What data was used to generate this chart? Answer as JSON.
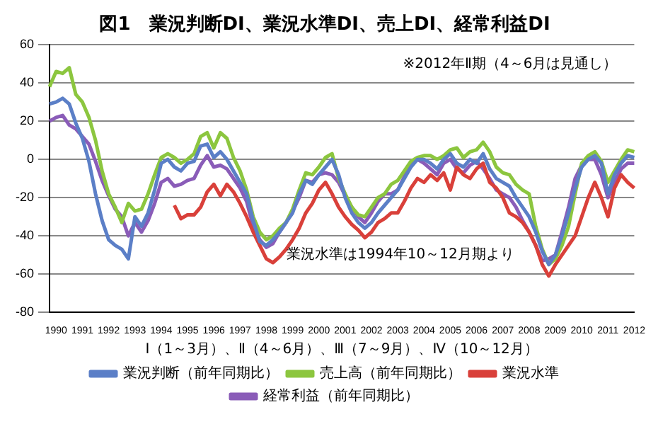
{
  "chart_data": {
    "type": "line",
    "title": "図1　業況判断DI、業況水準DI、売上DI、経常利益DI",
    "xlabel": "Ⅰ（1～3月）、Ⅱ（4～6月）、Ⅲ（7～9月）、Ⅳ（10～12月）",
    "categories": [
      null,
      "1990",
      null,
      null,
      null,
      "1991",
      null,
      null,
      null,
      "1992",
      null,
      null,
      null,
      "1993",
      null,
      null,
      null,
      "1994",
      null,
      null,
      null,
      "1995",
      null,
      null,
      null,
      "1996",
      null,
      null,
      null,
      "1997",
      null,
      null,
      null,
      "1998",
      null,
      null,
      null,
      "1999",
      null,
      null,
      null,
      "2000",
      null,
      null,
      null,
      "2001",
      null,
      null,
      null,
      "2002",
      null,
      null,
      null,
      "2003",
      null,
      null,
      null,
      "2004",
      null,
      null,
      null,
      "2005",
      null,
      null,
      null,
      "2006",
      null,
      null,
      null,
      "2007",
      null,
      null,
      null,
      "2008",
      null,
      null,
      null,
      "2009",
      null,
      null,
      null,
      "2010",
      null,
      null,
      null,
      "2011",
      null,
      null,
      null,
      "2012"
    ],
    "series": [
      {
        "name": "業況判断（前年同期比）",
        "color": "#5b7fc7",
        "values": [
          29,
          30,
          32,
          29,
          19,
          11,
          -1,
          -18,
          -32,
          -42,
          -45,
          -47,
          -52,
          -30,
          -35,
          -28,
          -16,
          -2,
          0,
          -4,
          -6,
          -2,
          -1,
          7,
          8,
          1,
          4,
          0,
          -6,
          -12,
          -18,
          -32,
          -43,
          -45,
          -42,
          -38,
          -33,
          -28,
          -18,
          -11,
          -13,
          -8,
          -4,
          0,
          -8,
          -20,
          -28,
          -33,
          -36,
          -33,
          -28,
          -24,
          -20,
          -16,
          -10,
          -4,
          0,
          0,
          -2,
          -5,
          0,
          3,
          -2,
          -4,
          0,
          -2,
          3,
          -5,
          -10,
          -12,
          -14,
          -20,
          -25,
          -30,
          -38,
          -48,
          -55,
          -50,
          -40,
          -28,
          -15,
          -4,
          0,
          2,
          -2,
          -18,
          -8,
          -2,
          2,
          1
        ]
      },
      {
        "name": "売上高（前年同期比）",
        "color": "#8cc63f",
        "values": [
          38,
          46,
          45,
          48,
          34,
          30,
          22,
          10,
          -6,
          -18,
          -25,
          -33,
          -23,
          -27,
          -26,
          -18,
          -8,
          1,
          3,
          1,
          -2,
          0,
          3,
          12,
          14,
          6,
          14,
          11,
          1,
          -6,
          -16,
          -30,
          -38,
          -42,
          -40,
          -36,
          -33,
          -26,
          -16,
          -7,
          -8,
          -4,
          1,
          3,
          -10,
          -18,
          -25,
          -29,
          -30,
          -25,
          -20,
          -18,
          -13,
          -11,
          -6,
          -1,
          1,
          2,
          2,
          0,
          2,
          5,
          6,
          1,
          4,
          5,
          9,
          4,
          -4,
          -7,
          -8,
          -13,
          -16,
          -18,
          -35,
          -47,
          -55,
          -52,
          -45,
          -35,
          -18,
          -2,
          2,
          4,
          -1,
          -12,
          -6,
          0,
          5,
          4
        ]
      },
      {
        "name": "業況水準",
        "color": "#d9403a",
        "values": [
          null,
          null,
          null,
          null,
          null,
          null,
          null,
          null,
          null,
          null,
          null,
          null,
          null,
          null,
          null,
          null,
          null,
          null,
          null,
          -24,
          -31,
          -29,
          -29,
          -25,
          -17,
          -13,
          -19,
          -13,
          -17,
          -23,
          -30,
          -38,
          -45,
          -52,
          -54,
          -51,
          -47,
          -42,
          -36,
          -28,
          -23,
          -16,
          -12,
          -18,
          -25,
          -30,
          -34,
          -37,
          -41,
          -38,
          -33,
          -31,
          -28,
          -28,
          -22,
          -15,
          -10,
          -12,
          -8,
          -11,
          -7,
          -16,
          -4,
          -8,
          -10,
          -5,
          -2,
          -12,
          -15,
          -20,
          -28,
          -30,
          -33,
          -38,
          -45,
          -55,
          -61,
          -55,
          -50,
          -45,
          -40,
          -30,
          -20,
          -12,
          -20,
          -30,
          -15,
          -8,
          -12,
          -15
        ]
      },
      {
        "name": "経常利益（前年同期比）",
        "color": "#8a5cb8",
        "values": [
          20,
          22,
          23,
          18,
          16,
          12,
          8,
          -1,
          -11,
          -19,
          -26,
          -30,
          -40,
          -33,
          -38,
          -32,
          -23,
          -12,
          -10,
          -14,
          -13,
          -11,
          -10,
          -3,
          2,
          -4,
          -3,
          -5,
          -10,
          -15,
          -22,
          -35,
          -42,
          -46,
          -44,
          -38,
          -33,
          -27,
          -20,
          -11,
          -12,
          -8,
          -7,
          -8,
          -12,
          -19,
          -25,
          -30,
          -33,
          -28,
          -22,
          -18,
          -18,
          -16,
          -9,
          -3,
          0,
          -2,
          -5,
          -8,
          -2,
          0,
          -5,
          -7,
          -3,
          -1,
          -5,
          -10,
          -16,
          -18,
          -20,
          -25,
          -32,
          -38,
          -45,
          -53,
          -52,
          -50,
          -38,
          -25,
          -10,
          -3,
          0,
          0,
          -8,
          -20,
          -12,
          -5,
          -2,
          -2
        ]
      }
    ],
    "ylim": [
      -80,
      60
    ],
    "yticks": [
      -80,
      -60,
      -40,
      -20,
      0,
      20,
      40,
      60
    ],
    "grid": "y",
    "legend": "bottom",
    "marker": "none",
    "line_style": "solid",
    "annotations": [
      "※2012年Ⅱ期（4～6月は見通し）",
      "業況水準は1994年10～12月期より"
    ]
  }
}
